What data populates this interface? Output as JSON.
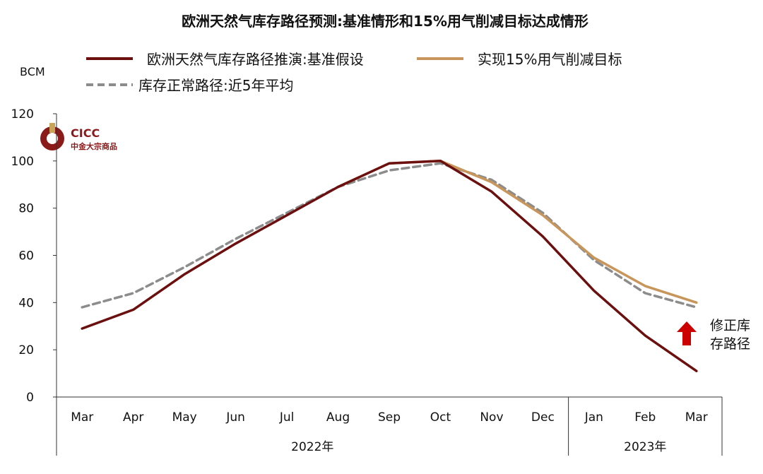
{
  "chart_data": {
    "type": "line",
    "title": "欧洲天然气库存路径预测:基准情形和15%用气削减目标达成情形",
    "ylabel": "BCM",
    "ylim": [
      0,
      120
    ],
    "yticks": [
      0,
      20,
      40,
      60,
      80,
      100,
      120
    ],
    "categories": [
      "Mar",
      "Apr",
      "May",
      "Jun",
      "Jul",
      "Aug",
      "Sep",
      "Oct",
      "Nov",
      "Dec",
      "Jan",
      "Feb",
      "Mar"
    ],
    "year_groups": [
      {
        "label": "2022年",
        "start": 0,
        "end": 9
      },
      {
        "label": "2023年",
        "start": 10,
        "end": 12
      }
    ],
    "legend_position": "top",
    "grid": false,
    "series": [
      {
        "name": "欧洲天然气库存路径推演:基准假设",
        "color": "#6b0f0f",
        "style": "solid",
        "values": [
          29,
          37,
          52,
          65,
          77,
          89,
          99,
          100,
          87,
          68,
          45,
          26,
          11
        ]
      },
      {
        "name": "实现15%用气削减目标",
        "color": "#c8955a",
        "style": "solid",
        "values": [
          null,
          null,
          null,
          null,
          null,
          89,
          99,
          100,
          91,
          77,
          59,
          47,
          40
        ]
      },
      {
        "name": "库存正常路径:近5年平均",
        "color": "#8c8c8c",
        "style": "dashed",
        "values": [
          38,
          44,
          55,
          67,
          78,
          89,
          96,
          99,
          92,
          78,
          58,
          44,
          38
        ]
      }
    ],
    "annotation": {
      "text_line1": "修正库",
      "text_line2": "存路径",
      "arrow_color": "#cc0000"
    }
  },
  "logo": {
    "name": "CICC",
    "subtitle": "中金大宗商品",
    "color": "#8b1a1a"
  }
}
